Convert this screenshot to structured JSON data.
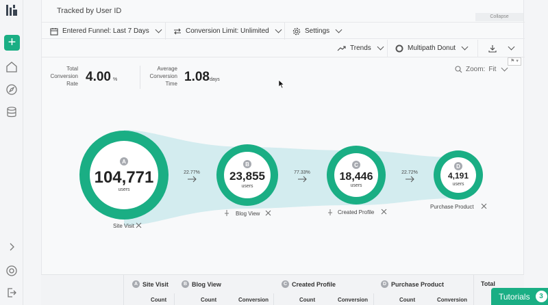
{
  "header": {
    "title": "Tracked by User ID",
    "collapse_label": "Collapse"
  },
  "toolbar": {
    "entered_funnel": "Entered Funnel: Last 7 Days",
    "conversion_limit": "Conversion Limit: Unlimited",
    "settings": "Settings",
    "trends": "Trends",
    "view": "Multipath Donut"
  },
  "stats": {
    "total_label_1": "Total",
    "total_label_2": "Conversion",
    "total_label_3": "Rate",
    "total_value": "4.00",
    "total_unit": "%",
    "avg_label_1": "Average",
    "avg_label_2": "Conversion",
    "avg_label_3": "Time",
    "avg_value": "1.08",
    "avg_unit": "days"
  },
  "zoom": {
    "label": "Zoom:",
    "value": "Fit"
  },
  "funnel": {
    "steps": [
      {
        "letter": "A",
        "count": "104,771",
        "unit": "users",
        "name": "Site Visit"
      },
      {
        "letter": "B",
        "count": "23,855",
        "unit": "users",
        "name": "Blog View"
      },
      {
        "letter": "C",
        "count": "18,446",
        "unit": "users",
        "name": "Created Profile"
      },
      {
        "letter": "D",
        "count": "4,191",
        "unit": "users",
        "name": "Purchase Product"
      }
    ],
    "rates": [
      "22.77%",
      "77.33%",
      "22.72%"
    ]
  },
  "table": {
    "headers": [
      {
        "letter": "A",
        "name": "Site Visit"
      },
      {
        "letter": "B",
        "name": "Blog View"
      },
      {
        "letter": "C",
        "name": "Created Profile"
      },
      {
        "letter": "D",
        "name": "Purchase Product"
      }
    ],
    "total": "Total",
    "count": "Count",
    "conversion": "Conversion"
  },
  "tutorials": {
    "label": "Tutorials",
    "count": "3"
  },
  "colors": {
    "accent": "#1aae84",
    "flow": "#d3ecef"
  }
}
